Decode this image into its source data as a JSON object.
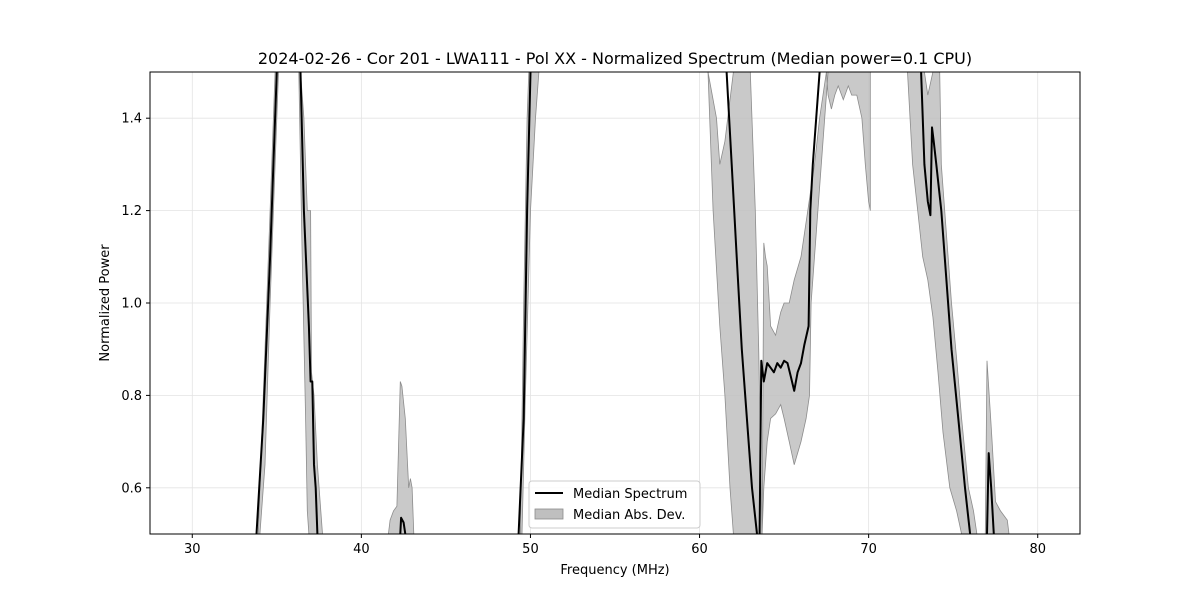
{
  "chart_data": {
    "type": "line",
    "title": "2024-02-26 - Cor 201 - LWA111 - Pol XX - Normalized Spectrum (Median power=0.1 CPU)",
    "xlabel": "Frequency (MHz)",
    "ylabel": "Normalized Power",
    "xlim": [
      27.5,
      82.5
    ],
    "ylim": [
      0.5,
      1.5
    ],
    "xticks": [
      30,
      40,
      50,
      60,
      70,
      80
    ],
    "yticks": [
      0.6,
      0.8,
      1.0,
      1.2,
      1.4
    ],
    "grid": true,
    "legend_position": "lower-center",
    "colors": {
      "median_line": "#000000",
      "mad_fill": "#bfbfbf",
      "mad_edge": "#8c8c8c"
    },
    "series": [
      {
        "name": "Median Spectrum",
        "kind": "line",
        "segments": [
          [
            [
              33.8,
              0.5
            ],
            [
              34.2,
              0.75
            ],
            [
              34.6,
              1.1
            ],
            [
              34.8,
              1.3
            ],
            [
              35.0,
              1.5
            ]
          ],
          [
            [
              36.4,
              1.5
            ],
            [
              36.6,
              1.2
            ],
            [
              36.9,
              0.95
            ],
            [
              37.0,
              0.83
            ],
            [
              37.1,
              0.83
            ],
            [
              37.2,
              0.65
            ],
            [
              37.3,
              0.6
            ],
            [
              37.4,
              0.5
            ]
          ],
          [
            [
              42.3,
              0.5
            ],
            [
              42.35,
              0.535
            ],
            [
              42.5,
              0.525
            ],
            [
              42.6,
              0.5
            ]
          ],
          [
            [
              49.3,
              0.5
            ],
            [
              49.6,
              0.75
            ],
            [
              49.8,
              1.2
            ],
            [
              50.0,
              1.5
            ]
          ],
          [
            [
              61.6,
              1.5
            ],
            [
              61.9,
              1.3
            ],
            [
              62.2,
              1.1
            ],
            [
              62.5,
              0.9
            ],
            [
              62.8,
              0.75
            ],
            [
              63.1,
              0.6
            ],
            [
              63.4,
              0.5
            ]
          ],
          [
            [
              63.55,
              0.5
            ],
            [
              63.65,
              0.875
            ],
            [
              63.8,
              0.83
            ],
            [
              64.0,
              0.87
            ],
            [
              64.2,
              0.86
            ],
            [
              64.4,
              0.85
            ],
            [
              64.6,
              0.87
            ],
            [
              64.8,
              0.86
            ],
            [
              65.0,
              0.875
            ],
            [
              65.2,
              0.87
            ],
            [
              65.4,
              0.84
            ],
            [
              65.6,
              0.81
            ],
            [
              65.8,
              0.85
            ],
            [
              66.0,
              0.87
            ],
            [
              66.2,
              0.91
            ],
            [
              66.45,
              0.95
            ],
            [
              66.55,
              1.2
            ],
            [
              66.7,
              1.3
            ],
            [
              66.9,
              1.4
            ],
            [
              67.1,
              1.5
            ]
          ],
          [
            [
              73.1,
              1.5
            ],
            [
              73.3,
              1.3
            ],
            [
              73.5,
              1.22
            ],
            [
              73.65,
              1.19
            ],
            [
              73.75,
              1.38
            ],
            [
              73.85,
              1.35
            ],
            [
              74.0,
              1.3
            ],
            [
              74.3,
              1.2
            ],
            [
              74.6,
              1.05
            ],
            [
              74.9,
              0.9
            ],
            [
              75.3,
              0.75
            ],
            [
              75.7,
              0.6
            ],
            [
              76.0,
              0.5
            ]
          ],
          [
            [
              77.0,
              0.5
            ],
            [
              77.1,
              0.675
            ],
            [
              77.25,
              0.6
            ],
            [
              77.4,
              0.5
            ]
          ]
        ]
      },
      {
        "name": "Median Abs. Dev.",
        "kind": "band",
        "segments": [
          {
            "upper": [
              [
                33.9,
                0.5
              ],
              [
                34.3,
                0.9
              ],
              [
                34.6,
                1.2
              ],
              [
                34.8,
                1.4
              ],
              [
                34.9,
                1.5
              ]
            ],
            "lower": [
              [
                33.9,
                0.5
              ],
              [
                34.0,
                0.5
              ],
              [
                34.3,
                0.65
              ],
              [
                34.6,
                1.0
              ],
              [
                34.9,
                1.3
              ],
              [
                35.1,
                1.5
              ]
            ]
          },
          {
            "upper": [
              [
                36.4,
                1.5
              ],
              [
                36.6,
                1.4
              ],
              [
                36.8,
                1.2
              ],
              [
                37.0,
                1.2
              ],
              [
                37.05,
                0.85
              ],
              [
                37.2,
                0.8
              ],
              [
                37.4,
                0.65
              ],
              [
                37.6,
                0.55
              ],
              [
                37.7,
                0.5
              ]
            ],
            "lower": [
              [
                36.3,
                1.5
              ],
              [
                36.5,
                1.1
              ],
              [
                36.7,
                0.75
              ],
              [
                36.8,
                0.55
              ],
              [
                36.9,
                0.5
              ]
            ]
          },
          {
            "upper": [
              [
                41.6,
                0.5
              ],
              [
                41.7,
                0.53
              ],
              [
                41.9,
                0.55
              ],
              [
                42.1,
                0.56
              ],
              [
                42.3,
                0.83
              ],
              [
                42.4,
                0.82
              ],
              [
                42.6,
                0.75
              ],
              [
                42.8,
                0.6
              ],
              [
                42.9,
                0.62
              ],
              [
                43.0,
                0.6
              ],
              [
                43.1,
                0.5
              ]
            ],
            "lower": [
              [
                41.6,
                0.5
              ],
              [
                43.1,
                0.5
              ]
            ]
          },
          {
            "upper": [
              [
                49.4,
                0.5
              ],
              [
                49.6,
                1.0
              ],
              [
                49.8,
                1.4
              ],
              [
                49.9,
                1.5
              ]
            ],
            "lower": [
              [
                49.4,
                0.5
              ],
              [
                49.5,
                0.5
              ],
              [
                49.7,
                0.8
              ],
              [
                50.0,
                1.2
              ],
              [
                50.3,
                1.4
              ],
              [
                50.5,
                1.5
              ]
            ]
          },
          {
            "upper": [
              [
                60.5,
                1.5
              ],
              [
                61.0,
                1.4
              ],
              [
                61.2,
                1.3
              ],
              [
                61.5,
                1.35
              ],
              [
                62.0,
                1.5
              ],
              [
                63.0,
                1.5
              ],
              [
                63.3,
                1.2
              ],
              [
                63.5,
                0.9
              ],
              [
                63.65,
                0.6
              ],
              [
                63.7,
                0.5
              ]
            ],
            "lower": [
              [
                60.5,
                1.5
              ],
              [
                60.8,
                1.2
              ],
              [
                61.2,
                0.95
              ],
              [
                61.5,
                0.8
              ],
              [
                61.8,
                0.6
              ],
              [
                62.0,
                0.5
              ]
            ]
          },
          {
            "upper": [
              [
                63.7,
                0.5
              ],
              [
                63.8,
                1.13
              ],
              [
                63.9,
                1.1
              ],
              [
                64.0,
                1.08
              ],
              [
                64.2,
                0.95
              ],
              [
                64.5,
                0.93
              ],
              [
                64.8,
                0.98
              ],
              [
                65.0,
                1.0
              ],
              [
                65.3,
                1.0
              ],
              [
                65.6,
                1.05
              ],
              [
                66.0,
                1.1
              ],
              [
                66.4,
                1.2
              ],
              [
                66.8,
                1.3
              ],
              [
                67.1,
                1.4
              ],
              [
                67.5,
                1.5
              ],
              [
                70.1,
                1.5
              ],
              [
                70.1,
                1.2
              ],
              [
                70.0,
                1.22
              ],
              [
                69.8,
                1.3
              ],
              [
                69.6,
                1.4
              ],
              [
                69.3,
                1.45
              ],
              [
                69.0,
                1.45
              ],
              [
                68.8,
                1.47
              ],
              [
                68.5,
                1.44
              ],
              [
                68.2,
                1.47
              ],
              [
                68.0,
                1.45
              ],
              [
                67.8,
                1.42
              ],
              [
                67.6,
                1.45
              ],
              [
                67.5,
                1.5
              ]
            ],
            "lower": [
              [
                63.7,
                0.5
              ],
              [
                63.8,
                0.6
              ],
              [
                64.0,
                0.7
              ],
              [
                64.2,
                0.75
              ],
              [
                64.5,
                0.76
              ],
              [
                64.8,
                0.78
              ],
              [
                65.0,
                0.75
              ],
              [
                65.3,
                0.7
              ],
              [
                65.6,
                0.65
              ],
              [
                66.0,
                0.7
              ],
              [
                66.3,
                0.75
              ],
              [
                66.5,
                0.8
              ],
              [
                66.6,
                1.0
              ],
              [
                66.8,
                1.1
              ],
              [
                67.0,
                1.2
              ],
              [
                67.3,
                1.35
              ],
              [
                67.5,
                1.45
              ],
              [
                67.6,
                1.5
              ]
            ]
          },
          {
            "upper": [
              [
                72.3,
                1.5
              ],
              [
                73.3,
                1.5
              ],
              [
                73.5,
                1.45
              ],
              [
                73.8,
                1.5
              ],
              [
                74.2,
                1.5
              ],
              [
                74.3,
                1.3
              ],
              [
                74.6,
                1.15
              ],
              [
                74.9,
                1.0
              ],
              [
                75.2,
                0.88
              ],
              [
                75.5,
                0.75
              ],
              [
                75.9,
                0.6
              ],
              [
                76.2,
                0.55
              ],
              [
                76.4,
                0.5
              ]
            ],
            "lower": [
              [
                72.3,
                1.5
              ],
              [
                72.6,
                1.3
              ],
              [
                72.9,
                1.2
              ],
              [
                73.2,
                1.1
              ],
              [
                73.5,
                1.05
              ],
              [
                73.8,
                0.97
              ],
              [
                74.1,
                0.85
              ],
              [
                74.4,
                0.72
              ],
              [
                74.8,
                0.6
              ],
              [
                75.2,
                0.55
              ],
              [
                75.5,
                0.5
              ]
            ]
          },
          {
            "upper": [
              [
                76.9,
                0.5
              ],
              [
                77.0,
                0.875
              ],
              [
                77.2,
                0.76
              ],
              [
                77.3,
                0.7
              ],
              [
                77.5,
                0.57
              ],
              [
                77.8,
                0.55
              ],
              [
                78.2,
                0.53
              ],
              [
                78.3,
                0.5
              ]
            ],
            "lower": [
              [
                76.9,
                0.5
              ],
              [
                78.3,
                0.5
              ]
            ]
          }
        ]
      }
    ]
  }
}
